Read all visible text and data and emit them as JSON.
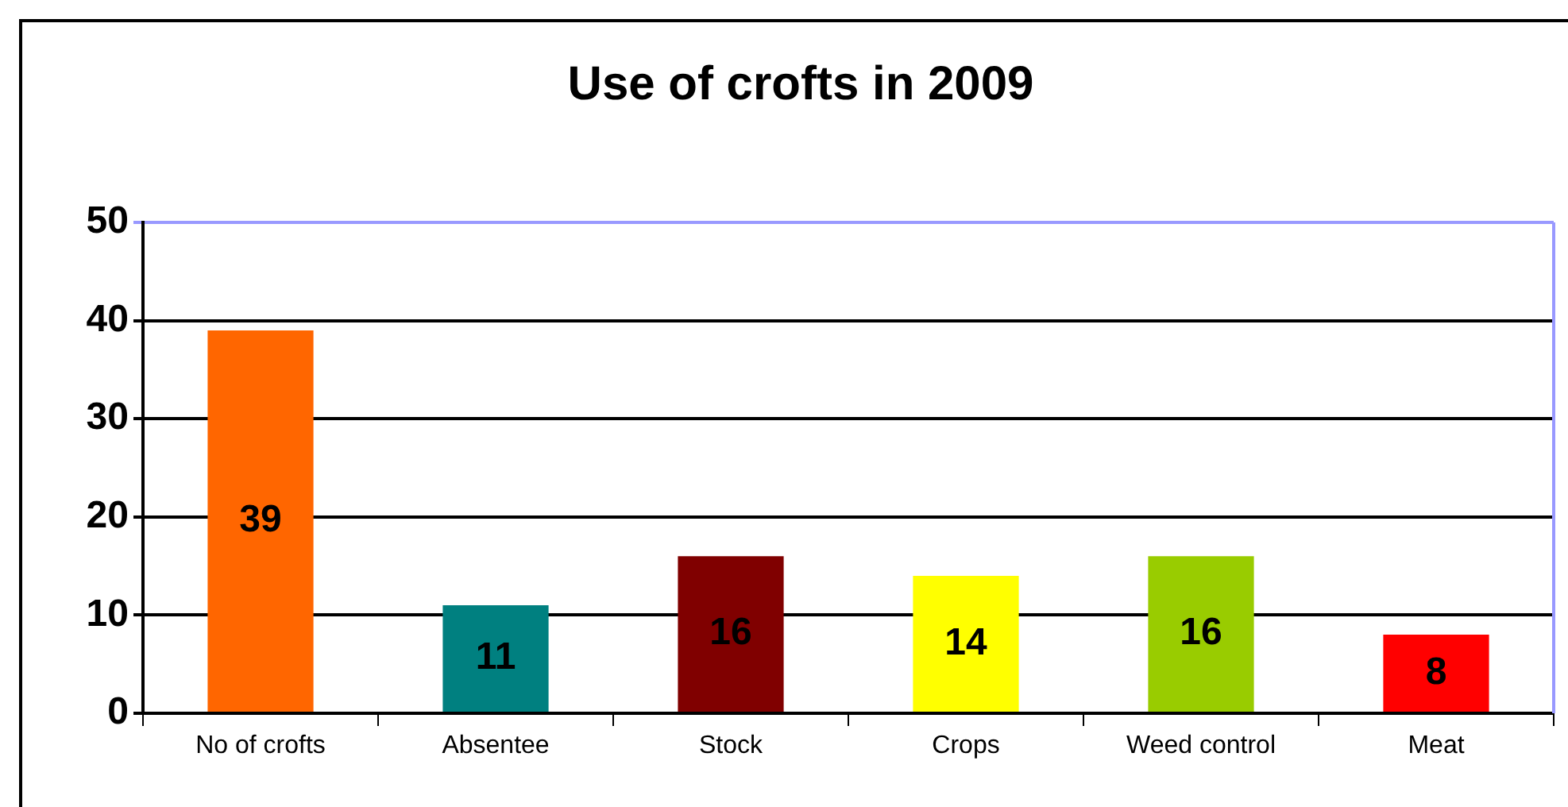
{
  "chart_data": {
    "type": "bar",
    "title": "Use of crofts in 2009",
    "categories": [
      "No of crofts",
      "Absentee",
      "Stock",
      "Crops",
      "Weed control",
      "Meat"
    ],
    "values": [
      39,
      11,
      16,
      14,
      16,
      8
    ],
    "colors": [
      "#ff6600",
      "#008080",
      "#800000",
      "#ffff00",
      "#99cc00",
      "#ff0000"
    ],
    "ylim": [
      0,
      50
    ],
    "yticks": [
      0,
      10,
      20,
      30,
      40,
      50
    ],
    "grid": "y",
    "data_labels": true
  }
}
